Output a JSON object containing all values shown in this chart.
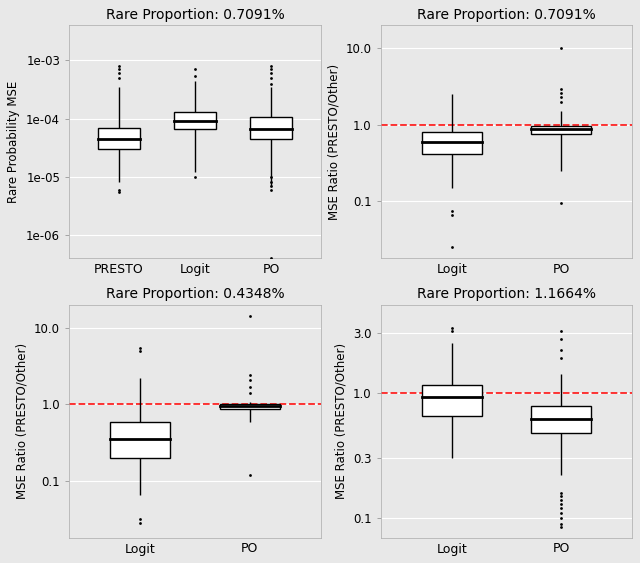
{
  "fig_bg": "#e8e8e8",
  "panel_bg": "#e8e8e8",
  "panel_tl": {
    "title": "Rare Proportion: 0.7091%",
    "ylabel": "Rare Probability MSE",
    "yscale": "log",
    "ylim": [
      4e-07,
      0.004
    ],
    "yticks": [
      1e-06,
      1e-05,
      0.0001,
      0.001
    ],
    "yticklabels": [
      "1e-06",
      "1e-05",
      "1e-04",
      "1e-03"
    ],
    "categories": [
      "PRESTO",
      "Logit",
      "PO"
    ],
    "boxes": [
      {
        "q1": 3e-05,
        "med": 4.5e-05,
        "q3": 7e-05,
        "whislo": 8e-06,
        "whishi": 0.00035,
        "fliers_low": [
          5.5e-06,
          6e-06
        ],
        "fliers_high": [
          0.0005,
          0.0006,
          0.0007,
          0.0008
        ]
      },
      {
        "q1": 6.5e-05,
        "med": 9e-05,
        "q3": 0.00013,
        "whislo": 1.2e-05,
        "whishi": 0.00045,
        "fliers_low": [
          1e-05
        ],
        "fliers_high": [
          0.00055,
          0.0007
        ]
      },
      {
        "q1": 4.5e-05,
        "med": 6.5e-05,
        "q3": 0.000105,
        "whislo": 7e-06,
        "whishi": 0.00035,
        "fliers_low": [
          6e-06,
          7e-06,
          8e-06,
          1e-05
        ],
        "fliers_high": [
          0.0004,
          0.0005,
          0.0006,
          0.0007,
          0.0008,
          4e-07
        ]
      }
    ]
  },
  "panel_tr": {
    "title": "Rare Proportion: 0.7091%",
    "ylabel": "MSE Ratio (PRESTO/Other)",
    "yscale": "log",
    "ylim": [
      0.018,
      20
    ],
    "yticks": [
      0.1,
      1.0,
      10.0
    ],
    "yticklabels": [
      "0.1",
      "1.0",
      "10.0"
    ],
    "categories": [
      "Logit",
      "PO"
    ],
    "ref_line": 1.0,
    "boxes": [
      {
        "q1": 0.42,
        "med": 0.6,
        "q3": 0.8,
        "whislo": 0.15,
        "whishi": 2.5,
        "fliers_low": [
          0.075,
          0.065,
          0.025
        ],
        "fliers_high": []
      },
      {
        "q1": 0.75,
        "med": 0.87,
        "q3": 0.96,
        "whislo": 0.25,
        "whishi": 1.5,
        "fliers_low": [
          0.095
        ],
        "fliers_high": [
          2.0,
          2.3,
          2.6,
          2.9,
          10.0
        ]
      }
    ]
  },
  "panel_bl": {
    "title": "Rare Proportion: 0.4348%",
    "ylabel": "MSE Ratio (PRESTO/Other)",
    "yscale": "log",
    "ylim": [
      0.018,
      20
    ],
    "yticks": [
      0.1,
      1.0,
      10.0
    ],
    "yticklabels": [
      "0.1",
      "1.0",
      "10.0"
    ],
    "categories": [
      "Logit",
      "PO"
    ],
    "ref_line": 1.0,
    "boxes": [
      {
        "q1": 0.2,
        "med": 0.35,
        "q3": 0.58,
        "whislo": 0.065,
        "whishi": 2.2,
        "fliers_low": [
          0.032,
          0.028
        ],
        "fliers_high": [
          5.0,
          5.5
        ]
      },
      {
        "q1": 0.88,
        "med": 0.94,
        "q3": 1.0,
        "whislo": 0.58,
        "whishi": 1.08,
        "fliers_low": [
          0.12
        ],
        "fliers_high": [
          1.4,
          1.7,
          2.1,
          2.4,
          14.5
        ]
      }
    ]
  },
  "panel_br": {
    "title": "Rare Proportion: 1.1664%",
    "ylabel": "MSE Ratio (PRESTO/Other)",
    "yscale": "log",
    "ylim": [
      0.07,
      5
    ],
    "yticks": [
      0.1,
      0.3,
      1.0,
      3.0
    ],
    "yticklabels": [
      "0.1",
      "0.3",
      "1.0",
      "3.0"
    ],
    "categories": [
      "Logit",
      "PO"
    ],
    "ref_line": 1.0,
    "boxes": [
      {
        "q1": 0.65,
        "med": 0.92,
        "q3": 1.15,
        "whislo": 0.3,
        "whishi": 2.5,
        "fliers_low": [],
        "fliers_high": [
          3.1,
          3.3
        ]
      },
      {
        "q1": 0.48,
        "med": 0.62,
        "q3": 0.78,
        "whislo": 0.22,
        "whishi": 1.4,
        "fliers_low": [
          0.085,
          0.09,
          0.1,
          0.11,
          0.12,
          0.13,
          0.14,
          0.15,
          0.16
        ],
        "fliers_high": [
          1.9,
          2.2,
          2.7,
          3.1
        ]
      }
    ]
  }
}
